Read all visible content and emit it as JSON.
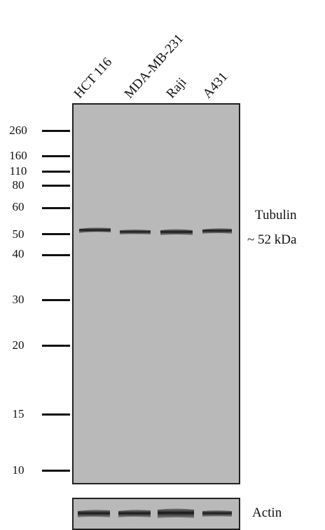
{
  "lanes": [
    "HCT 116",
    "MDA-MB-231",
    "Raji",
    "A431"
  ],
  "markers": [
    "260",
    "160",
    "110",
    "80",
    "60",
    "50",
    "40",
    "30",
    "20",
    "15",
    "10"
  ],
  "band": {
    "name": "Tubulin",
    "size": "~ 52 kDa"
  },
  "loading_control": {
    "name": "Actin"
  },
  "colors": {
    "blot_background": "#b9b9b9",
    "band": "#141414",
    "frame": "#222222"
  }
}
